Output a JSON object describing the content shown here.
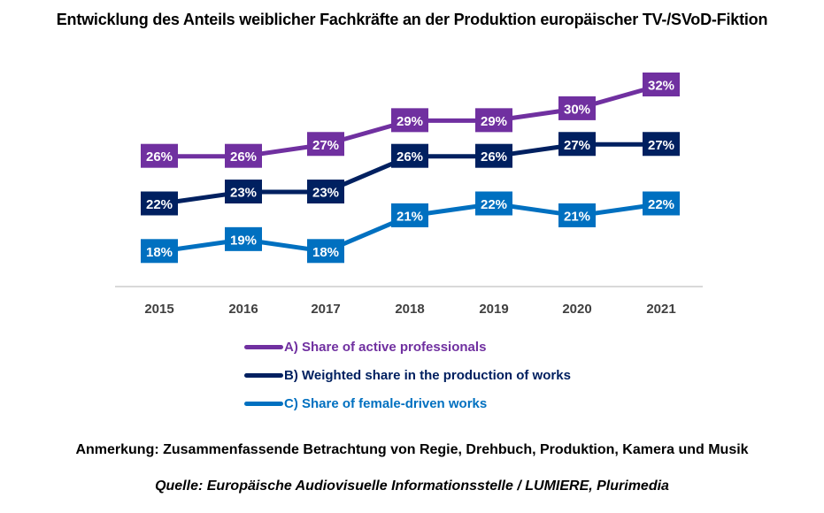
{
  "chart_data": {
    "type": "line",
    "title": "Entwicklung des Anteils weiblicher Fachkräfte an der Produktion europäischer TV-/SVoD-Fiktion",
    "xlabel": "",
    "ylabel": "",
    "x": [
      "2015",
      "2016",
      "2017",
      "2018",
      "2019",
      "2020",
      "2021"
    ],
    "ylim": [
      18,
      32
    ],
    "grid": false,
    "legend_position": "bottom",
    "series": [
      {
        "name": "A) Share of active professionals",
        "color": "#7030A0",
        "values": [
          26,
          26,
          27,
          29,
          29,
          30,
          32
        ],
        "labels": [
          "26%",
          "26%",
          "27%",
          "29%",
          "29%",
          "30%",
          "32%"
        ]
      },
      {
        "name": "B) Weighted share in the production of works",
        "color": "#002060",
        "values": [
          22,
          23,
          23,
          26,
          26,
          27,
          27
        ],
        "labels": [
          "22%",
          "23%",
          "23%",
          "26%",
          "26%",
          "27%",
          "27%"
        ]
      },
      {
        "name": "C) Share of female-driven works",
        "color": "#0070C0",
        "values": [
          18,
          19,
          18,
          21,
          22,
          21,
          22
        ],
        "labels": [
          "18%",
          "19%",
          "18%",
          "21%",
          "22%",
          "21%",
          "22%"
        ]
      }
    ],
    "note": "Anmerkung: Zusammenfassende Betrachtung von Regie, Drehbuch, Produktion, Kamera und Musik",
    "source": "Quelle: Europäische Audiovisuelle Informationsstelle / LUMIERE, Plurimedia"
  },
  "colors": {
    "axis": "#D9D9D9",
    "tick_text": "#404040",
    "label_text": "#FFFFFF"
  }
}
